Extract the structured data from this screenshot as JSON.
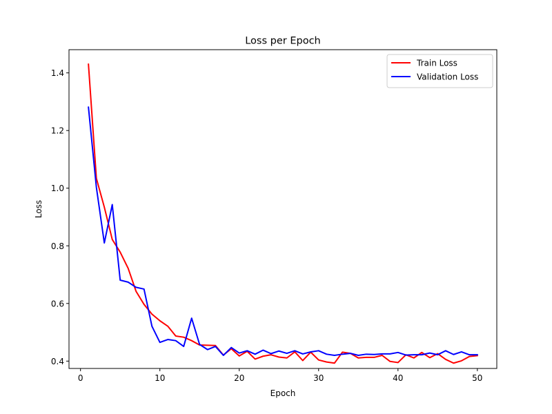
{
  "chart_data": {
    "type": "line",
    "title": "Loss per Epoch",
    "xlabel": "Epoch",
    "ylabel": "Loss",
    "xlim": [
      -1.45,
      52.45
    ],
    "ylim": [
      0.3745,
      1.4805
    ],
    "xticks": [
      0,
      10,
      20,
      30,
      40,
      50
    ],
    "yticks": [
      0.4,
      0.6,
      0.8,
      1.0,
      1.2,
      1.4
    ],
    "ytick_labels": [
      "0.4",
      "0.6",
      "0.8",
      "1.0",
      "1.2",
      "1.4"
    ],
    "grid": false,
    "legend_position": "top-right",
    "x": [
      1,
      2,
      3,
      4,
      5,
      6,
      7,
      8,
      9,
      10,
      11,
      12,
      13,
      14,
      15,
      16,
      17,
      18,
      19,
      20,
      21,
      22,
      23,
      24,
      25,
      26,
      27,
      28,
      29,
      30,
      31,
      32,
      33,
      34,
      35,
      36,
      37,
      38,
      39,
      40,
      41,
      42,
      43,
      44,
      45,
      46,
      47,
      48,
      49,
      50
    ],
    "series": [
      {
        "name": "Train Loss",
        "color": "#ff0000",
        "values": [
          1.43,
          1.034,
          0.934,
          0.822,
          0.778,
          0.722,
          0.642,
          0.597,
          0.563,
          0.54,
          0.521,
          0.487,
          0.483,
          0.471,
          0.456,
          0.455,
          0.454,
          0.421,
          0.443,
          0.418,
          0.434,
          0.407,
          0.417,
          0.422,
          0.414,
          0.411,
          0.432,
          0.402,
          0.431,
          0.404,
          0.397,
          0.393,
          0.431,
          0.427,
          0.411,
          0.413,
          0.413,
          0.42,
          0.399,
          0.395,
          0.422,
          0.411,
          0.43,
          0.412,
          0.426,
          0.406,
          0.393,
          0.401,
          0.416,
          0.419
        ]
      },
      {
        "name": "Validation Loss",
        "color": "#0000ff",
        "values": [
          1.281,
          1.003,
          0.81,
          0.943,
          0.681,
          0.674,
          0.656,
          0.65,
          0.521,
          0.465,
          0.475,
          0.471,
          0.451,
          0.549,
          0.458,
          0.44,
          0.451,
          0.42,
          0.447,
          0.428,
          0.436,
          0.424,
          0.438,
          0.426,
          0.435,
          0.427,
          0.436,
          0.425,
          0.432,
          0.436,
          0.424,
          0.42,
          0.424,
          0.427,
          0.42,
          0.424,
          0.423,
          0.425,
          0.425,
          0.43,
          0.421,
          0.422,
          0.422,
          0.428,
          0.422,
          0.436,
          0.423,
          0.432,
          0.422,
          0.422
        ]
      }
    ]
  }
}
